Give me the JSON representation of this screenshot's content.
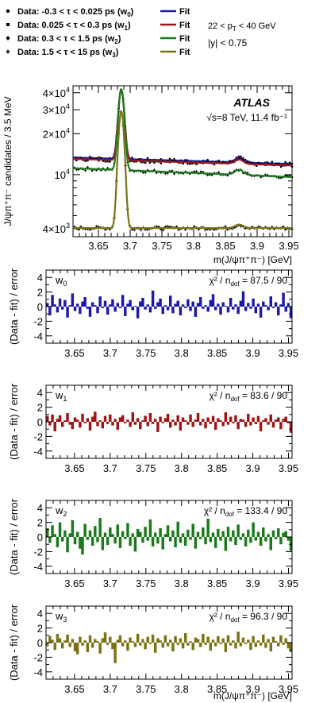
{
  "chart_data": [
    {
      "type": "line",
      "id": "main",
      "xlabel": "m(J/ψπ⁺π⁻) [GeV]",
      "ylabel": "J/ψπ⁺π⁻ candidates / 3.5 MeV",
      "xlim": [
        3.61,
        3.955
      ],
      "ylim": [
        3500,
        45000
      ],
      "yscale": "log",
      "xticks": [
        "3.65",
        "3.7",
        "3.75",
        "3.8",
        "3.85",
        "3.9",
        "3.95"
      ],
      "yticks": [
        {
          "value": 4000,
          "label": "4×10",
          "exp": "3"
        },
        {
          "value": 10000,
          "label": "10",
          "exp": "4"
        },
        {
          "value": 20000,
          "label": "2×10",
          "exp": "4"
        },
        {
          "value": 30000,
          "label": "3×10",
          "exp": "4"
        },
        {
          "value": 40000,
          "label": "4×10",
          "exp": "4"
        }
      ],
      "atlas_label": "ATLAS",
      "energy_label": "√s=8 TeV, 11.4 fb⁻¹",
      "cuts": [
        "22 < p",
        "T",
        " < 40 GeV",
        "|y| < 0.75"
      ],
      "legend": [
        {
          "marker": "Data: -0.3 < τ < 0.025 ps (w",
          "sub": "0",
          "fit": "Fit",
          "color": "#1a1aa6"
        },
        {
          "marker": "Data: 0.025 < τ < 0.3 ps (w",
          "sub": "1",
          "fit": "Fit",
          "color": "#a01414"
        },
        {
          "marker": "Data: 0.3 < τ < 1.5 ps (w",
          "sub": "2",
          "fit": "Fit",
          "color": "#1a7a1a"
        },
        {
          "marker": "Data: 1.5 < τ < 15 ps (w",
          "sub": "3",
          "fit": "Fit",
          "color": "#7a7214"
        }
      ],
      "series": [
        {
          "name": "w0",
          "color": "#1a1aa6",
          "background": 12600,
          "slope": 4000,
          "psi_peak": 29000,
          "x_peak": 1000
        },
        {
          "name": "w1",
          "color": "#a01414",
          "background": 12300,
          "slope": 4000,
          "psi_peak": 29500,
          "x_peak": 900
        },
        {
          "name": "w2",
          "color": "#1a7a1a",
          "background": 10300,
          "slope": 4500,
          "psi_peak": 31500,
          "x_peak": 900
        },
        {
          "name": "w3",
          "color": "#7a7214",
          "background": 4050,
          "slope": 0,
          "psi_peak": 25000,
          "x_peak": 250
        }
      ]
    },
    {
      "type": "bar",
      "id": "pull_w0",
      "label": "w",
      "sub": "0",
      "chi2": "χ² / n",
      "ndof_sub": "dof",
      "chi2_value": " = 87.5 / 90",
      "color": "#1a1aa6",
      "ylabel": "(Data - fit) / error",
      "ylim": [
        -5,
        5
      ],
      "yticks": [
        "-4",
        "-2",
        "0",
        "2",
        "4"
      ],
      "xticks": [
        "3.65",
        "3.7",
        "3.75",
        "3.8",
        "3.85",
        "3.9",
        "3.95"
      ],
      "xlim": [
        3.61,
        3.955
      ],
      "values": [
        0.5,
        -1.2,
        1.6,
        0.3,
        -0.8,
        1.1,
        -0.4,
        0.9,
        -1.5,
        0.2,
        1.8,
        -0.6,
        0.4,
        -1.0,
        0.7,
        1.3,
        -0.3,
        -1.4,
        0.6,
        0.2,
        -0.9,
        1.4,
        -0.2,
        0.8,
        -1.1,
        0.3,
        1.0,
        -0.7,
        0.5,
        -0.2,
        1.6,
        -1.3,
        0.4,
        0.9,
        -0.5,
        0.1,
        -1.6,
        0.7,
        1.2,
        -0.4,
        0.3,
        -0.8,
        2.2,
        -0.3,
        0.6,
        1.1,
        -1.0,
        0.2,
        -0.5,
        1.5,
        -0.9,
        0.4,
        0.8,
        -1.2,
        0.3,
        -0.2,
        1.0,
        -0.6,
        0.7,
        -1.4,
        0.5,
        1.3,
        -0.3,
        0.2,
        -0.7,
        0.9,
        1.7,
        -0.5,
        0.4,
        -1.1,
        0.6,
        0.1,
        -0.8,
        1.2,
        -0.4,
        0.3,
        -1.0,
        0.8,
        2.1,
        -0.6,
        0.5,
        -0.3,
        1.1,
        -0.9,
        0.4,
        -1.5,
        0.7,
        0.2,
        -0.5,
        1.4,
        -0.2,
        0.6,
        -1.2,
        0.3,
        1.9,
        -0.7,
        0.5,
        -1.6
      ]
    },
    {
      "type": "bar",
      "id": "pull_w1",
      "label": "w",
      "sub": "1",
      "chi2": "χ² / n",
      "ndof_sub": "dof",
      "chi2_value": " = 83.6 / 90",
      "color": "#a01414",
      "ylabel": "(Data - fit) / error",
      "ylim": [
        -5,
        5
      ],
      "yticks": [
        "-4",
        "-2",
        "0",
        "2",
        "4"
      ],
      "xticks": [
        "3.65",
        "3.7",
        "3.75",
        "3.8",
        "3.85",
        "3.9",
        "3.95"
      ],
      "xlim": [
        3.61,
        3.955
      ],
      "values": [
        0.8,
        -0.5,
        1.0,
        -1.3,
        0.4,
        0.9,
        -0.7,
        0.2,
        1.2,
        -0.4,
        -1.0,
        0.6,
        0.3,
        -0.8,
        1.1,
        -0.2,
        0.5,
        -1.2,
        0.7,
        1.4,
        -0.6,
        0.2,
        -0.9,
        0.8,
        -0.3,
        1.0,
        -0.5,
        0.4,
        -1.1,
        0.6,
        0.9,
        -0.2,
        0.3,
        -0.7,
        1.3,
        -0.4,
        0.5,
        -1.0,
        0.2,
        0.8,
        -0.6,
        1.2,
        -0.3,
        0.4,
        -1.4,
        0.7,
        -0.2,
        0.5,
        1.1,
        -0.8,
        0.3,
        -0.5,
        0.9,
        -1.2,
        0.6,
        0.2,
        -0.4,
        1.0,
        -0.7,
        0.3,
        1.2,
        -0.5,
        0.4,
        -0.9,
        0.6,
        -0.3,
        0.8,
        -1.1,
        0.5,
        0.2,
        -0.6,
        1.3,
        -0.4,
        0.7,
        -0.2,
        0.9,
        -1.0,
        0.4,
        0.3,
        -0.7,
        1.1,
        -0.5,
        0.6,
        -0.3,
        0.8,
        -1.3,
        0.2,
        0.5,
        -0.4,
        1.0,
        -0.8,
        0.3,
        0.6,
        -1.0,
        0.4,
        0.7,
        -0.2,
        -1.5
      ]
    },
    {
      "type": "bar",
      "id": "pull_w2",
      "label": "w",
      "sub": "2",
      "chi2": "χ² / n",
      "ndof_sub": "dof",
      "chi2_value": " = 133.4 / 90",
      "color": "#1a7a1a",
      "ylabel": "(Data - fit) / error",
      "ylim": [
        -5,
        5
      ],
      "yticks": [
        "-4",
        "-2",
        "0",
        "2",
        "4"
      ],
      "xticks": [
        "3.65",
        "3.7",
        "3.75",
        "3.8",
        "3.85",
        "3.9",
        "3.95"
      ],
      "xlim": [
        3.61,
        3.955
      ],
      "values": [
        1.2,
        -0.8,
        1.6,
        0.4,
        -1.4,
        2.0,
        -0.6,
        0.9,
        -2.1,
        0.5,
        2.3,
        -1.0,
        0.7,
        -1.6,
        -2.4,
        1.8,
        -0.4,
        0.9,
        -1.2,
        1.5,
        -0.7,
        2.6,
        -1.8,
        0.6,
        -1.1,
        1.3,
        0.4,
        -0.9,
        1.7,
        -1.5,
        0.8,
        -0.3,
        1.9,
        -1.2,
        0.5,
        -2.0,
        1.1,
        0.7,
        -0.8,
        1.4,
        -0.5,
        2.4,
        -1.3,
        0.6,
        -0.9,
        1.2,
        -1.7,
        0.4,
        1.6,
        -0.6,
        0.9,
        -1.4,
        2.1,
        -0.8,
        0.5,
        -1.2,
        1.0,
        -0.4,
        1.8,
        -1.6,
        0.7,
        -0.3,
        1.3,
        -1.0,
        2.5,
        -0.7,
        0.6,
        -1.5,
        1.1,
        -0.5,
        0.8,
        -1.9,
        1.4,
        -0.6,
        0.9,
        -1.1,
        1.7,
        -0.4,
        0.5,
        -1.3,
        1.0,
        -0.8,
        2.0,
        -0.5,
        0.7,
        -1.2,
        1.3,
        -0.6,
        0.4,
        -1.8,
        0.9,
        -0.3,
        1.2,
        -1.0,
        0.6,
        0.8,
        -0.5,
        -1.9
      ]
    },
    {
      "type": "bar",
      "id": "pull_w3",
      "label": "w",
      "sub": "3",
      "chi2": "χ² / n",
      "ndof_sub": "dof",
      "chi2_value": " = 96.3 / 90",
      "color": "#7a7214",
      "ylabel": "(Data - fit) / error",
      "ylim": [
        -5,
        5
      ],
      "yticks": [
        "-4",
        "-2",
        "0",
        "2",
        "4"
      ],
      "xticks": [
        "3.65",
        "3.7",
        "3.75",
        "3.8",
        "3.85",
        "3.9",
        "3.95"
      ],
      "xlim": [
        3.61,
        3.955
      ],
      "values": [
        -0.5,
        0.9,
        0.4,
        -1.0,
        1.2,
        0.6,
        -0.8,
        0.3,
        1.1,
        -0.6,
        0.5,
        -1.2,
        -1.6,
        0.8,
        -0.4,
        0.3,
        -1.3,
        1.0,
        -0.7,
        0.5,
        0.2,
        -1.5,
        0.6,
        1.4,
        -0.3,
        0.8,
        -0.9,
        -2.8,
        0.4,
        1.0,
        -0.5,
        0.3,
        -1.1,
        0.7,
        0.2,
        -0.6,
        1.2,
        -0.4,
        0.5,
        -0.9,
        0.8,
        -0.2,
        1.1,
        -1.4,
        0.6,
        0.3,
        -0.7,
        1.0,
        -0.5,
        0.4,
        -1.2,
        0.9,
        -0.3,
        0.6,
        -0.8,
        1.3,
        -0.4,
        0.2,
        -1.0,
        0.7,
        0.5,
        -0.6,
        1.2,
        -0.3,
        0.8,
        -1.1,
        0.4,
        -0.5,
        0.9,
        -0.2,
        0.6,
        -1.3,
        1.0,
        -0.4,
        0.3,
        -0.8,
        1.5,
        -0.5,
        0.7,
        -0.2,
        0.4,
        -1.0,
        0.9,
        -0.6,
        0.3,
        -0.4,
        1.1,
        -0.7,
        0.5,
        -1.2,
        0.8,
        0.2,
        -0.5,
        1.0,
        -0.3,
        0.6,
        -0.8,
        -1.3
      ]
    }
  ]
}
